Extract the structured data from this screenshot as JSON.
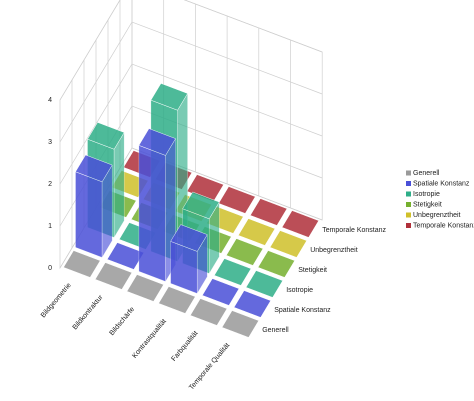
{
  "chart_data": {
    "type": "bar3d",
    "categories": [
      "Bildgeometrie",
      "Bildkontraktur",
      "Bildschärfe",
      "Kontrastqualität",
      "Farbqualität",
      "Temporale Qualität"
    ],
    "series": [
      {
        "name": "Generell",
        "color": "#9a9a9a",
        "values": [
          0,
          0,
          0,
          0,
          0,
          0
        ]
      },
      {
        "name": "Spatiale Konstanz",
        "color": "#4a50d8",
        "values": [
          1.8,
          0,
          3.0,
          1.0,
          0,
          0
        ]
      },
      {
        "name": "Isotropie",
        "color": "#2eae88",
        "values": [
          2.1,
          0,
          3.6,
          1.3,
          0,
          0
        ]
      },
      {
        "name": "Stetigkeit",
        "color": "#76b02e",
        "values": [
          0,
          0,
          0,
          0,
          0,
          0
        ]
      },
      {
        "name": "Unbegrenztheit",
        "color": "#d0c02a",
        "values": [
          0,
          0,
          0,
          0,
          0,
          0
        ]
      },
      {
        "name": "Temporale Konstanz",
        "color": "#b0303a",
        "values": [
          0,
          0,
          0,
          0,
          0,
          0
        ]
      }
    ],
    "ylim": [
      0,
      4
    ],
    "yticks": [
      0,
      1,
      2,
      3,
      4
    ],
    "grid": true
  }
}
